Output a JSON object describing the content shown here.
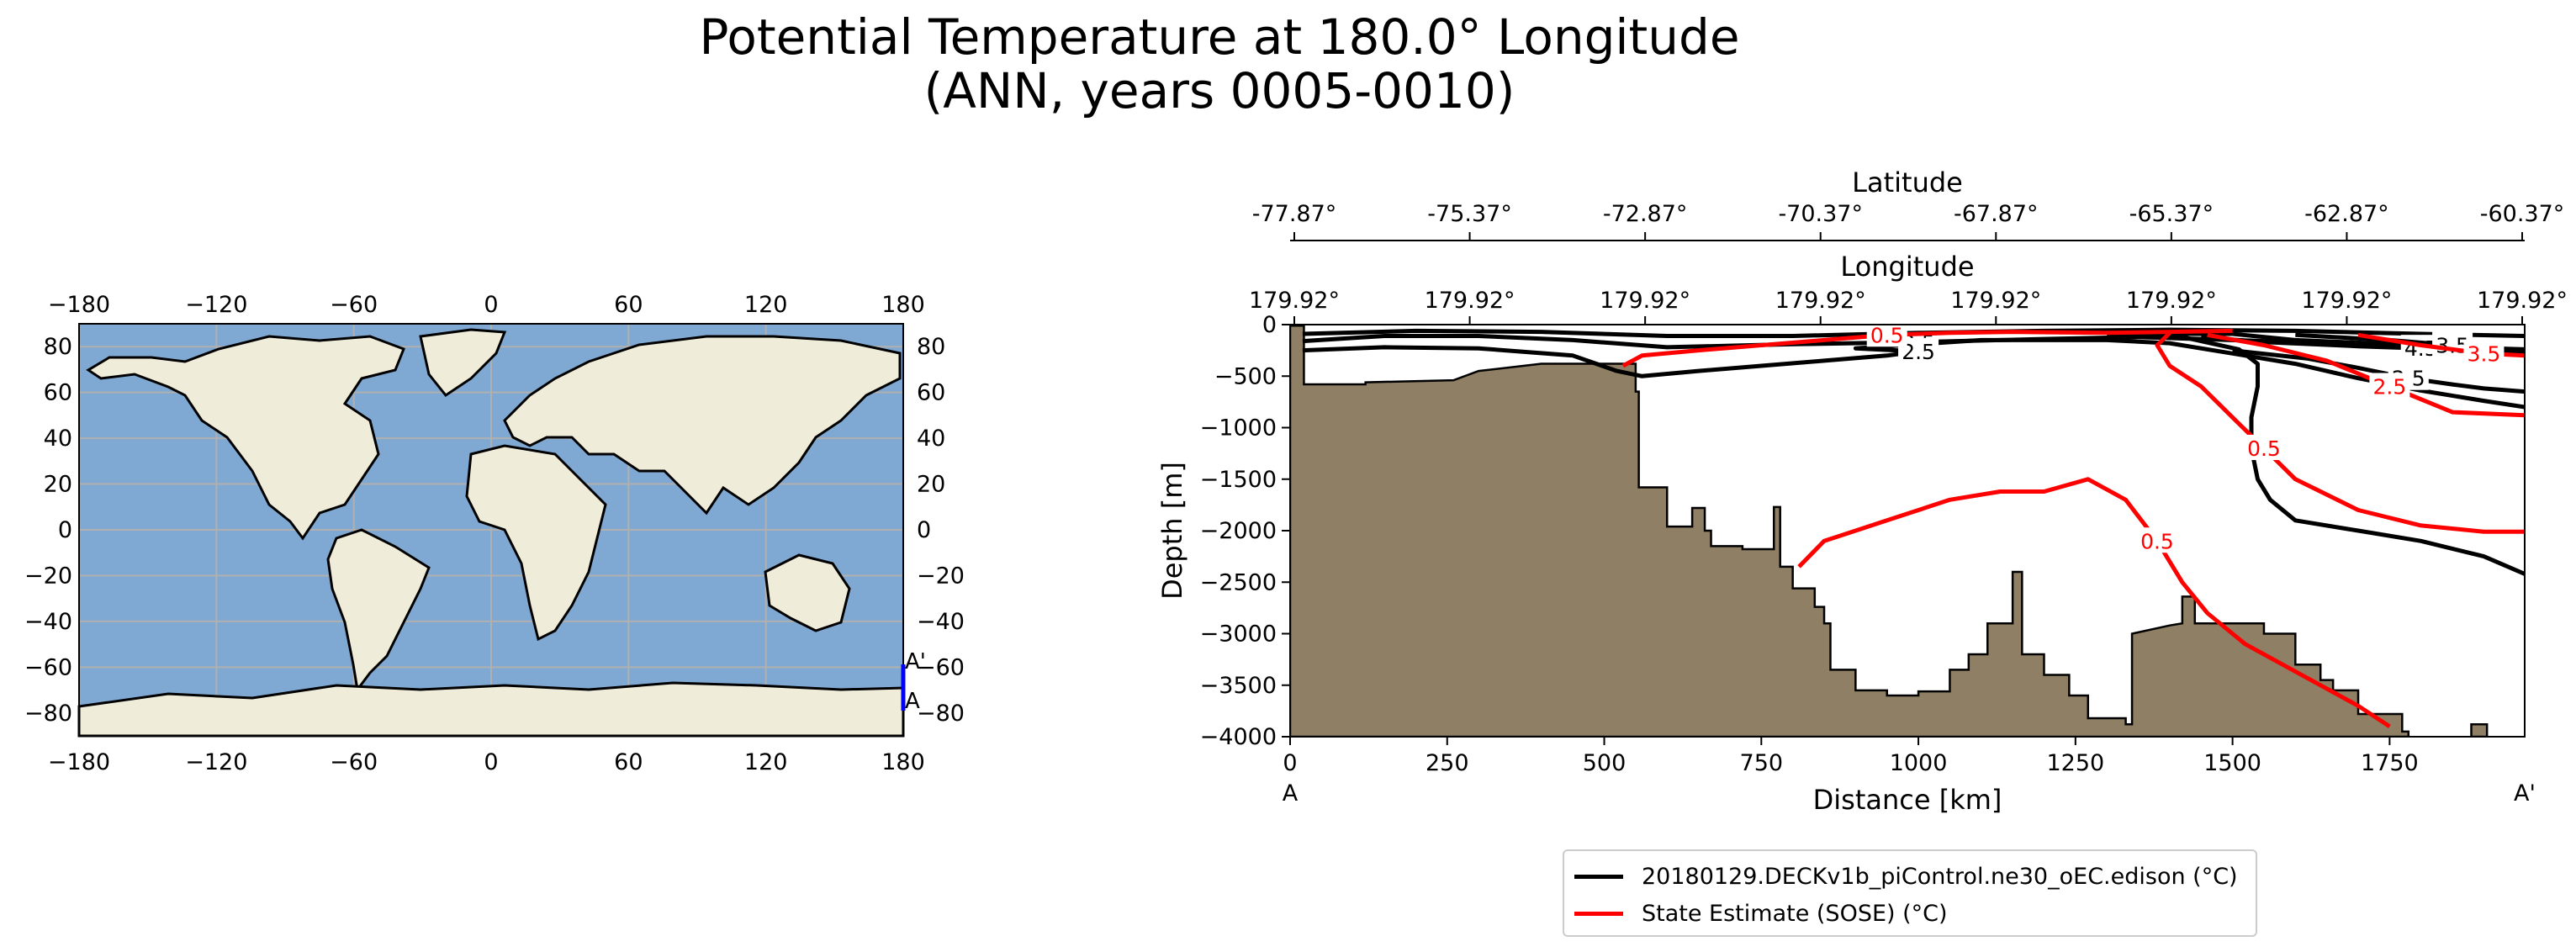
{
  "title_line1": "Potential Temperature at 180.0° Longitude",
  "title_line2": "(ANN, years 0005-0010)",
  "map": {
    "lon_ticks": [
      "−180",
      "−120",
      "−60",
      "0",
      "60",
      "120",
      "180"
    ],
    "lat_ticks": [
      "80",
      "60",
      "40",
      "20",
      "0",
      "−20",
      "−40",
      "−60",
      "−80"
    ],
    "section_labels": [
      "A'",
      "A"
    ],
    "colors": {
      "ocean": "#7fa9d2",
      "land": "#efedd9",
      "coast": "#000000",
      "grid": "#b0b0b0",
      "section": "#0000ff"
    }
  },
  "chart_data": {
    "type": "contour_section",
    "xlabel": "Distance [km]",
    "ylabel": "Depth [m]",
    "xlim": [
      0,
      1965
    ],
    "ylim": [
      -4000,
      0
    ],
    "x_ticks": [
      0,
      250,
      500,
      750,
      1000,
      1250,
      1500,
      1750
    ],
    "y_ticks": [
      0,
      -500,
      -1000,
      -1500,
      -2000,
      -2500,
      -3000,
      -3500,
      -4000
    ],
    "x_end_labels": [
      "A",
      "A'"
    ],
    "top_axis_1": {
      "label": "Latitude",
      "ticks": [
        "-77.87°",
        "-75.37°",
        "-72.87°",
        "-70.37°",
        "-67.87°",
        "-65.37°",
        "-62.87°",
        "-60.37°"
      ]
    },
    "top_axis_2": {
      "label": "Longitude",
      "ticks": [
        "179.92°",
        "179.92°",
        "179.92°",
        "179.92°",
        "179.92°",
        "179.92°",
        "179.92°",
        "179.92°"
      ]
    },
    "bathymetry_color": "#8e7f65",
    "bathymetry": [
      [
        0,
        -10
      ],
      [
        22,
        -10
      ],
      [
        22,
        -580
      ],
      [
        120,
        -580
      ],
      [
        120,
        -560
      ],
      [
        260,
        -540
      ],
      [
        300,
        -450
      ],
      [
        400,
        -380
      ],
      [
        550,
        -380
      ],
      [
        550,
        -650
      ],
      [
        555,
        -650
      ],
      [
        555,
        -1580
      ],
      [
        600,
        -1580
      ],
      [
        600,
        -1960
      ],
      [
        640,
        -1960
      ],
      [
        640,
        -1780
      ],
      [
        660,
        -1780
      ],
      [
        660,
        -2000
      ],
      [
        670,
        -2000
      ],
      [
        670,
        -2150
      ],
      [
        720,
        -2150
      ],
      [
        720,
        -2180
      ],
      [
        770,
        -2180
      ],
      [
        770,
        -1770
      ],
      [
        780,
        -1770
      ],
      [
        780,
        -2350
      ],
      [
        800,
        -2350
      ],
      [
        800,
        -2560
      ],
      [
        835,
        -2560
      ],
      [
        835,
        -2740
      ],
      [
        850,
        -2740
      ],
      [
        850,
        -2900
      ],
      [
        860,
        -2900
      ],
      [
        860,
        -3350
      ],
      [
        900,
        -3350
      ],
      [
        900,
        -3550
      ],
      [
        950,
        -3550
      ],
      [
        950,
        -3600
      ],
      [
        1000,
        -3600
      ],
      [
        1000,
        -3560
      ],
      [
        1050,
        -3560
      ],
      [
        1050,
        -3350
      ],
      [
        1080,
        -3350
      ],
      [
        1080,
        -3200
      ],
      [
        1110,
        -3200
      ],
      [
        1110,
        -2900
      ],
      [
        1150,
        -2900
      ],
      [
        1150,
        -2400
      ],
      [
        1165,
        -2400
      ],
      [
        1165,
        -3200
      ],
      [
        1200,
        -3200
      ],
      [
        1200,
        -3400
      ],
      [
        1240,
        -3400
      ],
      [
        1240,
        -3600
      ],
      [
        1270,
        -3600
      ],
      [
        1270,
        -3820
      ],
      [
        1330,
        -3820
      ],
      [
        1330,
        -3880
      ],
      [
        1340,
        -3880
      ],
      [
        1340,
        -3000
      ],
      [
        1400,
        -2920
      ],
      [
        1420,
        -2900
      ],
      [
        1420,
        -2640
      ],
      [
        1440,
        -2640
      ],
      [
        1440,
        -2900
      ],
      [
        1550,
        -2900
      ],
      [
        1550,
        -3000
      ],
      [
        1600,
        -3000
      ],
      [
        1600,
        -3300
      ],
      [
        1640,
        -3300
      ],
      [
        1640,
        -3450
      ],
      [
        1660,
        -3450
      ],
      [
        1660,
        -3550
      ],
      [
        1700,
        -3550
      ],
      [
        1700,
        -3780
      ],
      [
        1770,
        -3780
      ],
      [
        1770,
        -3950
      ],
      [
        1780,
        -3950
      ],
      [
        1780,
        -4000
      ],
      [
        0,
        -4000
      ]
    ],
    "bathymetry_2": [
      [
        1880,
        -4000
      ],
      [
        1880,
        -3880
      ],
      [
        1905,
        -3880
      ],
      [
        1905,
        -4000
      ]
    ],
    "series": [
      {
        "name": "20180129.DECKv1b_piControl.ne30_oEC.edison (°C)",
        "color": "#000000",
        "contours": [
          {
            "level": "3.5",
            "points": [
              [
                20,
                -160
              ],
              [
                150,
                -110
              ],
              [
                300,
                -110
              ],
              [
                450,
                -150
              ],
              [
                600,
                -220
              ],
              [
                800,
                -190
              ],
              [
                1000,
                -170
              ],
              [
                1200,
                -140
              ],
              [
                1350,
                -120
              ],
              [
                1550,
                -160
              ],
              [
                1700,
                -190
              ],
              [
                1850,
                -220
              ],
              [
                1965,
                -240
              ]
            ]
          },
          {
            "level": "",
            "points": [
              [
                20,
                -90
              ],
              [
                200,
                -60
              ],
              [
                400,
                -70
              ],
              [
                600,
                -110
              ],
              [
                800,
                -110
              ],
              [
                1000,
                -80
              ],
              [
                1200,
                -60
              ],
              [
                1400,
                -50
              ],
              [
                1600,
                -60
              ],
              [
                1800,
                -90
              ],
              [
                1965,
                -110
              ]
            ]
          },
          {
            "level": "2.5",
            "points": [
              [
                20,
                -250
              ],
              [
                150,
                -220
              ],
              [
                300,
                -230
              ],
              [
                450,
                -300
              ],
              [
                520,
                -450
              ],
              [
                560,
                -500
              ],
              [
                650,
                -450
              ],
              [
                750,
                -400
              ],
              [
                850,
                -350
              ],
              [
                950,
                -300
              ],
              [
                1000,
                -260
              ],
              [
                900,
                -230
              ],
              [
                1100,
                -150
              ],
              [
                1300,
                -150
              ],
              [
                1400,
                -180
              ],
              [
                1500,
                -280
              ],
              [
                1600,
                -380
              ],
              [
                1700,
                -520
              ],
              [
                1800,
                -640
              ],
              [
                1900,
                -740
              ],
              [
                1965,
                -800
              ]
            ]
          },
          {
            "level": "",
            "points": [
              [
                1300,
                -90
              ],
              [
                1500,
                -90
              ],
              [
                1600,
                -150
              ],
              [
                1800,
                -200
              ],
              [
                1965,
                -280
              ]
            ]
          },
          {
            "level": "4.5",
            "points": [
              [
                1450,
                -120
              ],
              [
                1550,
                -170
              ],
              [
                1700,
                -210
              ],
              [
                1800,
                -230
              ],
              [
                1900,
                -260
              ],
              [
                1965,
                -280
              ]
            ]
          },
          {
            "level": "3.5",
            "points": [
              [
                1600,
                -100
              ],
              [
                1750,
                -150
              ],
              [
                1850,
                -200
              ],
              [
                1965,
                -250
              ]
            ]
          },
          {
            "level": "2.5",
            "points": [
              [
                1500,
                -250
              ],
              [
                1620,
                -330
              ],
              [
                1700,
                -420
              ],
              [
                1780,
                -520
              ],
              [
                1850,
                -580
              ],
              [
                1900,
                -620
              ],
              [
                1965,
                -650
              ]
            ]
          },
          {
            "level": "",
            "points": [
              [
                1350,
                -80
              ],
              [
                1420,
                -120
              ],
              [
                1510,
                -240
              ],
              [
                1540,
                -380
              ],
              [
                1540,
                -600
              ],
              [
                1530,
                -900
              ],
              [
                1530,
                -1200
              ],
              [
                1540,
                -1500
              ],
              [
                1560,
                -1700
              ],
              [
                1600,
                -1900
              ],
              [
                1700,
                -2000
              ],
              [
                1800,
                -2100
              ],
              [
                1900,
                -2250
              ],
              [
                1965,
                -2420
              ]
            ]
          }
        ]
      },
      {
        "name": "State Estimate (SOSE) (°C)",
        "color": "#ff0000",
        "contours": [
          {
            "level": "0.5",
            "points": [
              [
                530,
                -400
              ],
              [
                560,
                -300
              ],
              [
                650,
                -250
              ],
              [
                750,
                -200
              ],
              [
                850,
                -150
              ],
              [
                950,
                -100
              ],
              [
                1050,
                -80
              ],
              [
                1150,
                -70
              ],
              [
                1300,
                -80
              ],
              [
                1400,
                -70
              ],
              [
                1500,
                -60
              ]
            ]
          },
          {
            "level": "0.5",
            "points": [
              [
                1400,
                -80
              ],
              [
                1380,
                -200
              ],
              [
                1400,
                -400
              ],
              [
                1450,
                -600
              ],
              [
                1500,
                -900
              ],
              [
                1550,
                -1200
              ],
              [
                1600,
                -1500
              ],
              [
                1700,
                -1800
              ],
              [
                1800,
                -1950
              ],
              [
                1900,
                -2010
              ],
              [
                1965,
                -2010
              ]
            ]
          },
          {
            "level": "2.5",
            "points": [
              [
                1460,
                -100
              ],
              [
                1550,
                -200
              ],
              [
                1650,
                -350
              ],
              [
                1750,
                -600
              ],
              [
                1850,
                -850
              ],
              [
                1965,
                -880
              ]
            ]
          },
          {
            "level": "3.5",
            "points": [
              [
                1700,
                -100
              ],
              [
                1800,
                -200
              ],
              [
                1900,
                -280
              ],
              [
                1965,
                -300
              ]
            ]
          },
          {
            "level": "0.5",
            "points": [
              [
                810,
                -2350
              ],
              [
                850,
                -2100
              ],
              [
                950,
                -1900
              ],
              [
                1050,
                -1700
              ],
              [
                1130,
                -1620
              ],
              [
                1200,
                -1620
              ],
              [
                1270,
                -1500
              ],
              [
                1330,
                -1700
              ],
              [
                1380,
                -2100
              ],
              [
                1420,
                -2500
              ],
              [
                1460,
                -2800
              ],
              [
                1520,
                -3100
              ],
              [
                1580,
                -3300
              ],
              [
                1640,
                -3500
              ],
              [
                1700,
                -3700
              ],
              [
                1750,
                -3900
              ]
            ]
          }
        ]
      }
    ]
  },
  "legend": {
    "items": [
      {
        "label": "20180129.DECKv1b_piControl.ne30_oEC.edison (°C)",
        "color": "#000000"
      },
      {
        "label": "State Estimate (SOSE) (°C)",
        "color": "#ff0000"
      }
    ],
    "placement": "bottom-center"
  }
}
